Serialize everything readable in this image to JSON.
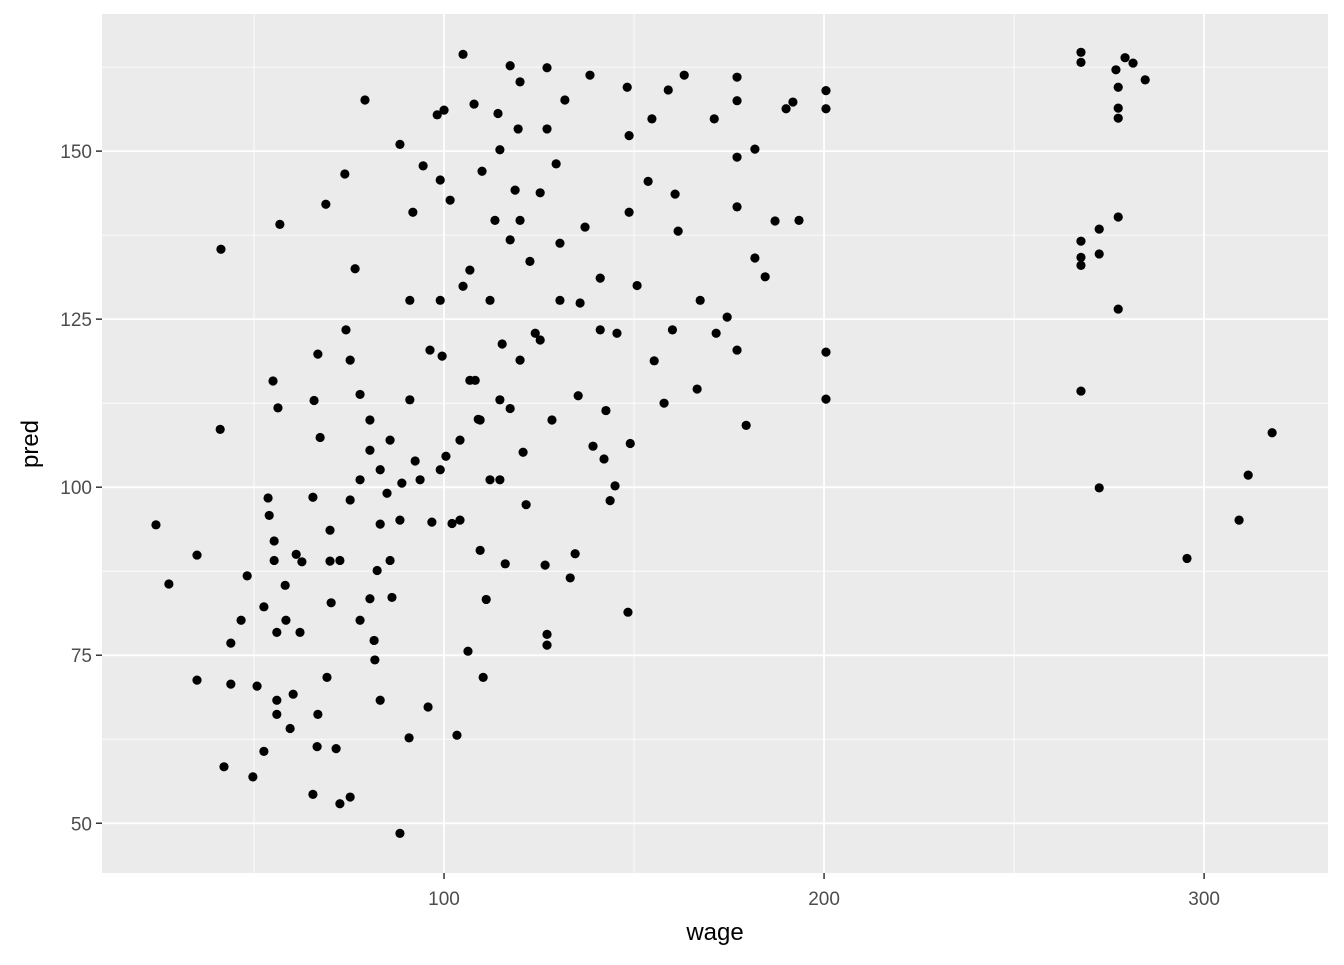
{
  "chart_data": {
    "type": "scatter",
    "x_label": "wage",
    "y_label": "pred",
    "xlim": [
      10,
      332.6
    ],
    "ylim": [
      42.6,
      170.4
    ],
    "xticks": [
      100,
      200,
      300
    ],
    "yticks": [
      50,
      75,
      100,
      125,
      150
    ],
    "xminor": [
      50,
      150,
      250
    ],
    "yminor": [
      62.5,
      87.5,
      112.5,
      137.5,
      162.5
    ],
    "grid": true,
    "color": "#000000",
    "x": [
      24.2,
      27.6,
      35,
      35,
      41.3,
      41.1,
      42.1,
      43.9,
      43.9,
      46.6,
      48.2,
      49.7,
      50.8,
      52.6,
      52.6,
      53.7,
      54,
      55,
      55.3,
      55.3,
      56,
      56,
      56,
      56.3,
      56.8,
      58.2,
      58.4,
      60.3,
      59.5,
      61.1,
      62.1,
      62.6,
      65.5,
      65.5,
      65.8,
      66.6,
      66.8,
      68.9,
      66.8,
      67.4,
      69.2,
      70,
      70.3,
      71.6,
      72.6,
      73.9,
      74.2,
      75.3,
      76.6,
      77.9,
      79.2,
      80.5,
      81.6,
      82.4,
      83.2,
      85,
      86.3,
      88.4,
      88.4,
      88.9,
      90.8,
      91.8,
      92.4,
      94.5,
      95.8,
      96.8,
      98.2,
      99,
      99.5,
      100,
      100.5,
      102.1,
      103.4,
      105,
      105,
      106.3,
      107.9,
      108.2,
      109,
      110,
      110.3,
      111.1,
      112.1,
      113.4,
      114.2,
      115.3,
      116.1,
      117.4,
      117.4,
      118.7,
      119.5,
      120,
      120.8,
      121.6,
      122.6,
      124,
      125.3,
      126.6,
      127.1,
      127.1,
      127.1,
      127.1,
      128.4,
      129.5,
      130.5,
      131.8,
      133.2,
      134.5,
      135.3,
      135.8,
      137.1,
      138.4,
      139.2,
      141.1,
      142.1,
      142.6,
      143.7,
      145,
      145.5,
      148.2,
      148.4,
      148.7,
      148.7,
      149,
      150.8,
      153.7,
      154.7,
      155.3,
      157.9,
      159,
      160.1,
      160.8,
      161.6,
      163.2,
      166.6,
      167.4,
      171.1,
      171.6,
      174.5,
      177.1,
      177.1,
      177.1,
      177.1,
      177.1,
      179.5,
      181.8,
      181.8,
      184.5,
      187.1,
      190,
      191.8,
      193.4,
      200.5,
      200.5,
      200.5,
      200.5,
      267.6,
      267.6,
      267.6,
      267.6,
      267.6,
      267.6,
      272.4,
      272.4,
      272.4,
      276.8,
      277.4,
      277.4,
      277.4,
      277.4,
      277.4,
      279.2,
      281.3,
      284.5,
      295.5,
      309.2,
      311.6,
      317.9,
      80.5,
      81.8,
      83.2,
      77.9,
      85.8,
      88.4,
      93.7,
      99,
      104.2,
      109.5,
      114.7,
      120,
      125.3,
      106.8,
      96.3,
      91,
      85.8,
      75.3,
      70,
      72.6,
      104.2,
      109.5,
      114.7,
      117.4,
      106.8,
      101.6,
      112.1,
      130.5,
      141.1,
      83.2,
      77.9,
      80.5,
      91,
      75.3,
      99,
      114.7,
      120
    ],
    "y": [
      94.4,
      85.6,
      89.9,
      71.3,
      135.4,
      108.6,
      58.4,
      76.8,
      70.7,
      80.2,
      86.8,
      56.9,
      70.4,
      82.2,
      60.7,
      98.4,
      95.8,
      115.8,
      92,
      89.1,
      78.4,
      68.3,
      66.2,
      111.8,
      139.1,
      85.4,
      80.2,
      69.2,
      64.1,
      90,
      78.4,
      88.9,
      98.5,
      54.3,
      112.9,
      61.4,
      66.2,
      142.1,
      119.8,
      107.4,
      71.7,
      89,
      82.8,
      61.1,
      52.9,
      146.6,
      123.4,
      53.9,
      132.5,
      113.8,
      157.6,
      105.5,
      77.2,
      87.6,
      94.5,
      99.1,
      83.6,
      151,
      48.5,
      100.6,
      62.7,
      140.9,
      103.9,
      147.8,
      67.3,
      94.8,
      155.4,
      127.8,
      119.5,
      156.1,
      104.6,
      94.6,
      63.1,
      164.4,
      129.9,
      75.6,
      157,
      115.9,
      110.1,
      147,
      71.7,
      83.3,
      101.1,
      139.7,
      155.6,
      121.3,
      88.6,
      162.7,
      111.7,
      144.2,
      153.3,
      160.3,
      105.2,
      97.4,
      133.6,
      122.9,
      143.8,
      88.4,
      162.4,
      153.3,
      78.1,
      76.5,
      110,
      148.1,
      136.3,
      157.6,
      86.5,
      90.1,
      113.6,
      127.4,
      138.7,
      161.3,
      106.1,
      131.1,
      104.2,
      111.4,
      98,
      100.2,
      122.9,
      159.5,
      81.4,
      152.3,
      140.9,
      106.5,
      130,
      145.5,
      154.8,
      118.8,
      112.5,
      159.1,
      123.4,
      143.6,
      138.1,
      161.3,
      114.6,
      127.8,
      154.8,
      122.9,
      125.3,
      161,
      157.5,
      149.1,
      141.7,
      120.4,
      109.2,
      150.3,
      134.1,
      131.3,
      139.6,
      156.3,
      157.3,
      139.7,
      159,
      156.3,
      120.1,
      113.1,
      164.7,
      163.2,
      136.6,
      134.2,
      133,
      114.3,
      138.4,
      134.7,
      99.9,
      162.1,
      159.5,
      156.4,
      154.9,
      140.2,
      126.5,
      163.9,
      163.1,
      160.6,
      89.4,
      95.1,
      101.8,
      108.1,
      83.4,
      74.3,
      68.3,
      80.2,
      89.1,
      95.1,
      101.1,
      102.6,
      107,
      110,
      113,
      118.9,
      121.9,
      115.9,
      120.4,
      113,
      107,
      98.1,
      93.6,
      89.1,
      95.1,
      90.6,
      101.1,
      136.8,
      132.3,
      142.7,
      127.8,
      127.8,
      123.4,
      102.6,
      101.1,
      110,
      127.8,
      118.9,
      145.7,
      150.2,
      139.7
    ]
  }
}
